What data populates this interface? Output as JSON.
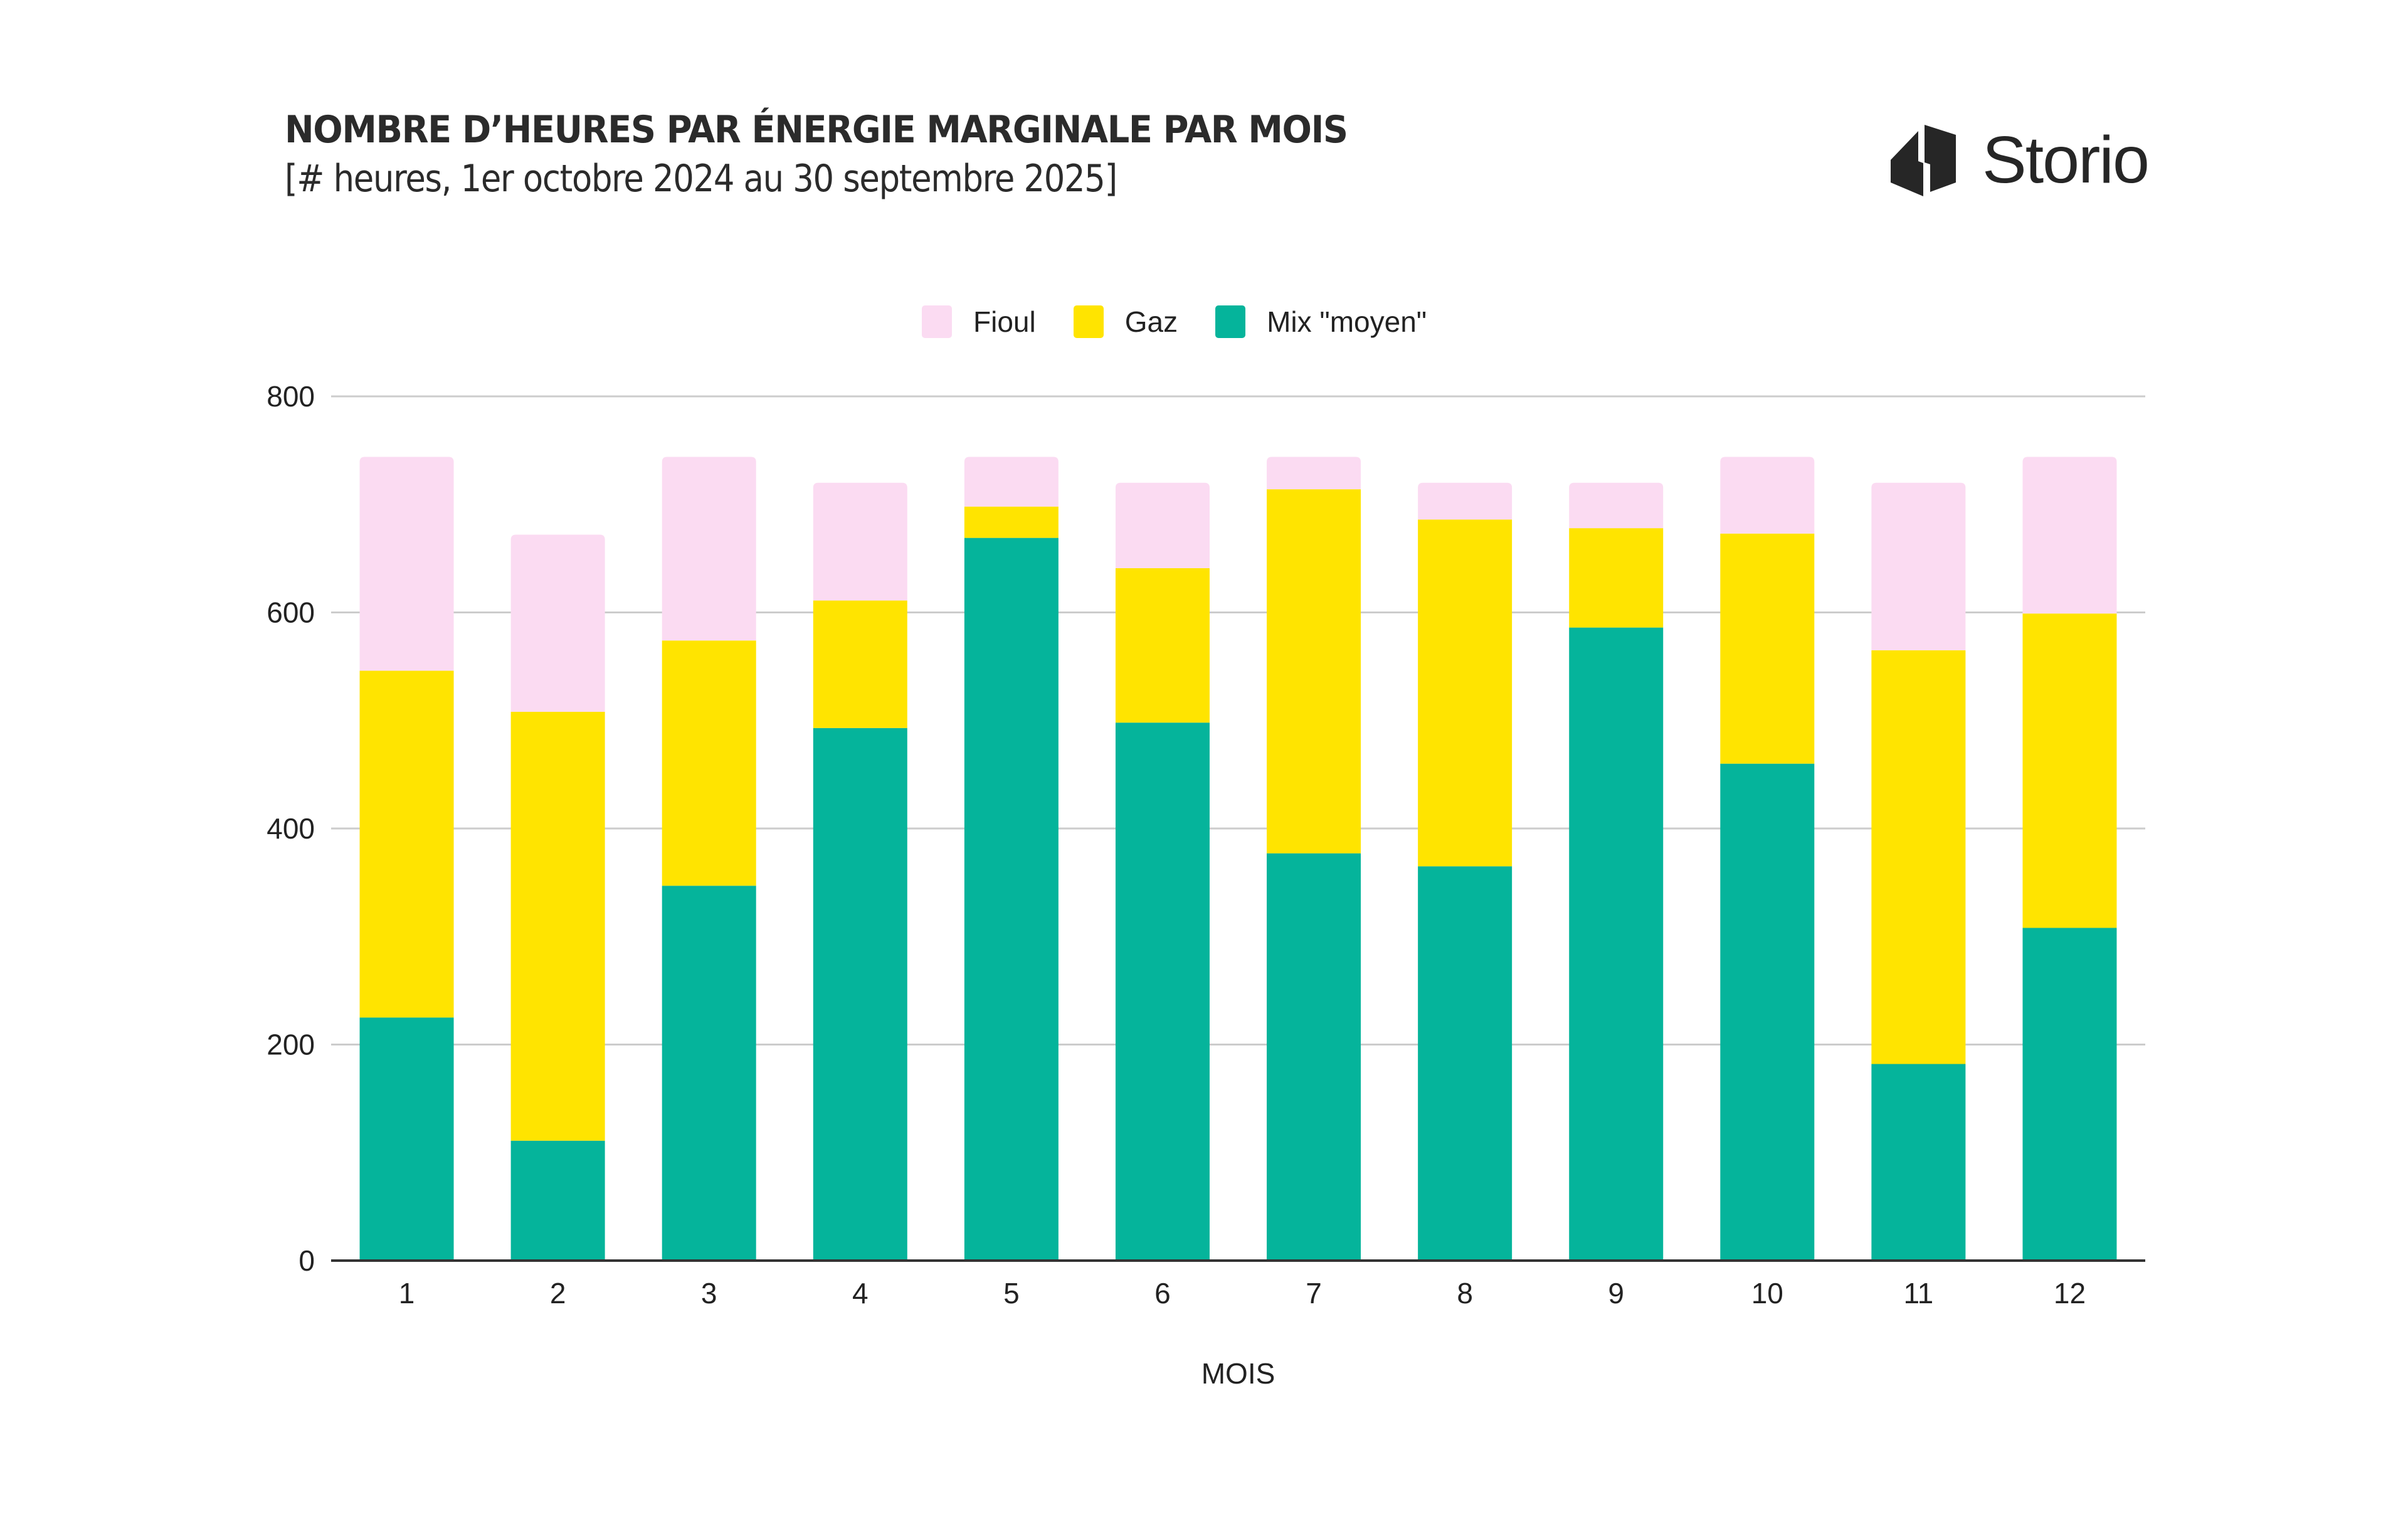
{
  "header": {
    "title": "NOMBRE D’HEURES PAR ÉNERGIE MARGINALE PAR MOIS",
    "subtitle": "[# heures, 1er octobre 2024 au 30 septembre 2025]"
  },
  "logo": {
    "icon": "storio-building-icon",
    "text": "Storio"
  },
  "colors": {
    "fioul": "#FBDBF2",
    "gaz": "#FFE400",
    "mix": "#05B49B",
    "text": "#2B2B2B",
    "grid": "#CCCCCC",
    "axis": "#333333"
  },
  "chart_data": {
    "type": "bar",
    "stacked": true,
    "title": "NOMBRE D’HEURES PAR ÉNERGIE MARGINALE PAR MOIS",
    "subtitle": "[# heures, 1er octobre 2024 au 30 septembre 2025]",
    "xlabel": "MOIS",
    "ylabel": "",
    "categories": [
      "1",
      "2",
      "3",
      "4",
      "5",
      "6",
      "7",
      "8",
      "9",
      "10",
      "11",
      "12"
    ],
    "ylim": [
      0,
      800
    ],
    "yticks": [
      0,
      200,
      400,
      600,
      800
    ],
    "grid": true,
    "legend_position": "top-center",
    "series": [
      {
        "name": "Mix \"moyen\"",
        "key": "mix",
        "values": [
          225,
          111,
          347,
          493,
          669,
          498,
          377,
          365,
          586,
          460,
          182,
          308
        ]
      },
      {
        "name": "Gaz",
        "key": "gaz",
        "values": [
          321,
          397,
          227,
          118,
          29,
          143,
          337,
          321,
          92,
          213,
          383,
          291
        ]
      },
      {
        "name": "Fioul",
        "key": "fioul",
        "values": [
          198,
          164,
          170,
          109,
          46,
          79,
          30,
          34,
          42,
          71,
          155,
          145
        ]
      }
    ],
    "legend": [
      "Fioul",
      "Gaz",
      "Mix \"moyen\""
    ]
  }
}
